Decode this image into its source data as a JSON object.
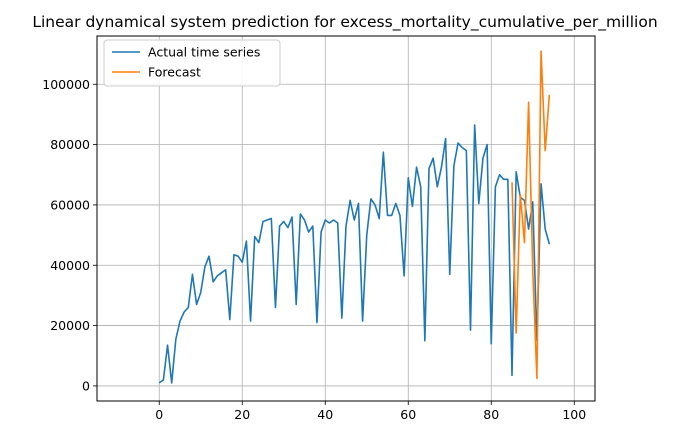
{
  "chart_data": {
    "type": "line",
    "title": "Linear dynamical system prediction for excess_mortality_cumulative_per_million",
    "xlabel": "",
    "ylabel": "",
    "xlim": [
      -15,
      105
    ],
    "ylim": [
      -5000,
      116000
    ],
    "xticks": [
      0,
      20,
      40,
      60,
      80,
      100
    ],
    "yticks": [
      0,
      20000,
      40000,
      60000,
      80000,
      100000
    ],
    "grid": true,
    "legend_position": "top-left",
    "series": [
      {
        "name": "Actual time series",
        "color": "#1f77b4",
        "x": [
          0,
          1,
          2,
          3,
          4,
          5,
          6,
          7,
          8,
          9,
          10,
          11,
          12,
          13,
          14,
          15,
          16,
          17,
          18,
          19,
          20,
          21,
          22,
          23,
          24,
          25,
          26,
          27,
          28,
          29,
          30,
          31,
          32,
          33,
          34,
          35,
          36,
          37,
          38,
          39,
          40,
          41,
          42,
          43,
          44,
          45,
          46,
          47,
          48,
          49,
          50,
          51,
          52,
          53,
          54,
          55,
          56,
          57,
          58,
          59,
          60,
          61,
          62,
          63,
          64,
          65,
          66,
          67,
          68,
          69,
          70,
          71,
          72,
          73,
          74,
          75,
          76,
          77,
          78,
          79,
          80,
          81,
          82,
          83,
          84,
          85,
          86,
          87,
          88,
          89,
          90,
          91,
          92,
          93,
          94
        ],
        "y": [
          1000,
          2000,
          13500,
          1000,
          15500,
          21500,
          24500,
          26000,
          37000,
          27000,
          31000,
          39500,
          43000,
          34500,
          36500,
          37500,
          38500,
          22000,
          43500,
          43000,
          41000,
          48000,
          21500,
          49500,
          47500,
          54500,
          55000,
          55500,
          26000,
          53000,
          54500,
          52500,
          56000,
          27000,
          57000,
          55000,
          51000,
          53000,
          21000,
          51000,
          55000,
          54000,
          55000,
          54000,
          22500,
          53000,
          61500,
          55000,
          60500,
          21500,
          50000,
          62000,
          60000,
          55500,
          77500,
          56500,
          56500,
          60500,
          56500,
          36500,
          69000,
          59500,
          72500,
          66000,
          15000,
          72000,
          75500,
          66000,
          72500,
          82000,
          37000,
          73000,
          80500,
          79000,
          78000,
          18500,
          86500,
          60500,
          75500,
          80000,
          14000,
          66000,
          70000,
          68500,
          68500,
          3500,
          71000,
          62500,
          61500,
          52000,
          61000,
          15000,
          67000,
          52000,
          47000
        ]
      },
      {
        "name": "Forecast",
        "color": "#ff7f0e",
        "x": [
          85,
          86,
          87,
          88,
          89,
          90,
          91,
          92,
          93,
          94
        ],
        "y": [
          67500,
          17500,
          63500,
          47500,
          94000,
          38500,
          2500,
          111000,
          78000,
          96500
        ]
      }
    ]
  }
}
